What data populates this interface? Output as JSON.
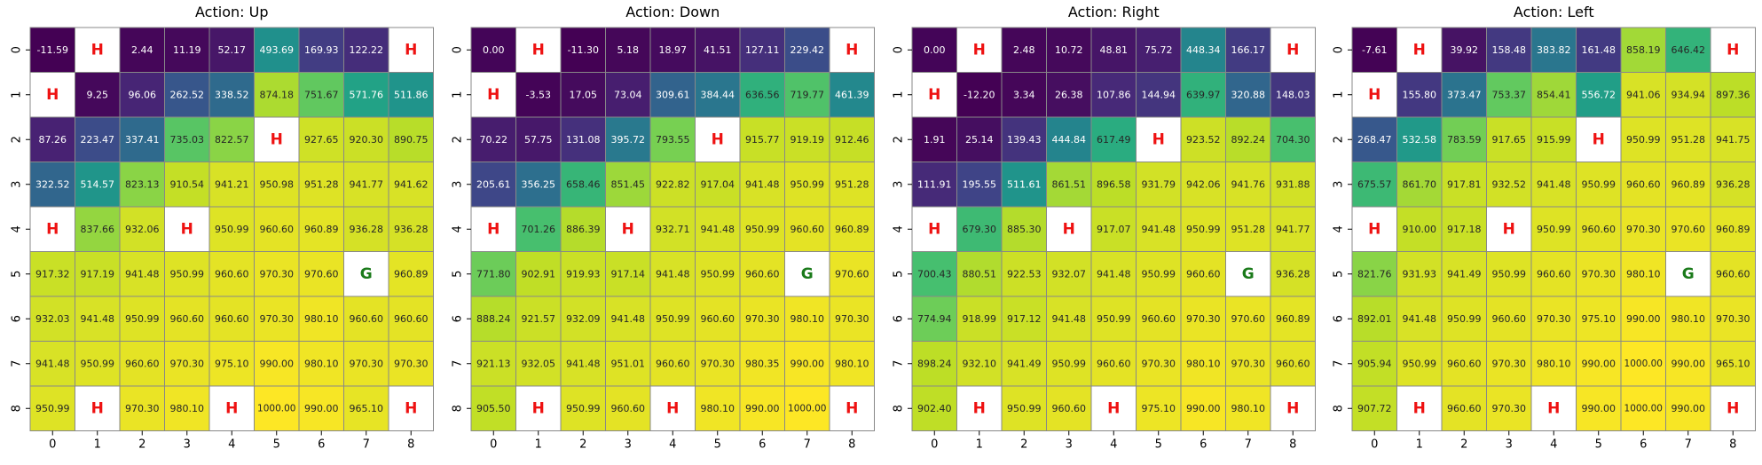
{
  "chart_data": [
    {
      "type": "heatmap",
      "title": "Action: Up",
      "x_ticks": [
        "0",
        "1",
        "2",
        "3",
        "4",
        "5",
        "6",
        "7",
        "8"
      ],
      "y_ticks": [
        "0",
        "1",
        "2",
        "3",
        "4",
        "5",
        "6",
        "7",
        "8"
      ],
      "colormap": "viridis",
      "vmin": -12.2,
      "vmax": 1000.0,
      "hole_label": "H",
      "goal_label": "G",
      "hole_color": "#ee1111",
      "goal_color": "#1a7a1a",
      "cells": [
        [
          "-11.59",
          "H",
          "2.44",
          "11.19",
          "52.17",
          "493.69",
          "169.93",
          "122.22",
          "H"
        ],
        [
          "H",
          "9.25",
          "96.06",
          "262.52",
          "338.52",
          "874.18",
          "751.67",
          "571.76",
          "511.86"
        ],
        [
          "87.26",
          "223.47",
          "337.41",
          "735.03",
          "822.57",
          "H",
          "927.65",
          "920.30",
          "890.75"
        ],
        [
          "322.52",
          "514.57",
          "823.13",
          "910.54",
          "941.21",
          "950.98",
          "951.28",
          "941.77",
          "941.62"
        ],
        [
          "H",
          "837.66",
          "932.06",
          "H",
          "950.99",
          "960.60",
          "960.89",
          "936.28",
          "936.28"
        ],
        [
          "917.32",
          "917.19",
          "941.48",
          "950.99",
          "960.60",
          "970.30",
          "970.60",
          "G",
          "960.89"
        ],
        [
          "932.03",
          "941.48",
          "950.99",
          "960.60",
          "960.60",
          "970.30",
          "980.10",
          "960.60",
          "960.60"
        ],
        [
          "941.48",
          "950.99",
          "960.60",
          "970.30",
          "975.10",
          "990.00",
          "980.10",
          "970.30",
          "970.30"
        ],
        [
          "950.99",
          "H",
          "970.30",
          "980.10",
          "H",
          "1000.00",
          "990.00",
          "965.10",
          "H"
        ]
      ]
    },
    {
      "type": "heatmap",
      "title": "Action: Down",
      "x_ticks": [
        "0",
        "1",
        "2",
        "3",
        "4",
        "5",
        "6",
        "7",
        "8"
      ],
      "y_ticks": [
        "0",
        "1",
        "2",
        "3",
        "4",
        "5",
        "6",
        "7",
        "8"
      ],
      "colormap": "viridis",
      "vmin": -12.2,
      "vmax": 1000.0,
      "hole_label": "H",
      "goal_label": "G",
      "hole_color": "#ee1111",
      "goal_color": "#1a7a1a",
      "cells": [
        [
          "0.00",
          "H",
          "-11.30",
          "5.18",
          "18.97",
          "41.51",
          "127.11",
          "229.42",
          "H"
        ],
        [
          "H",
          "-3.53",
          "17.05",
          "73.04",
          "309.61",
          "384.44",
          "636.56",
          "719.77",
          "461.39"
        ],
        [
          "70.22",
          "57.75",
          "131.08",
          "395.72",
          "793.55",
          "H",
          "915.77",
          "919.19",
          "912.46"
        ],
        [
          "205.61",
          "356.25",
          "658.46",
          "851.45",
          "922.82",
          "917.04",
          "941.48",
          "950.99",
          "951.28"
        ],
        [
          "H",
          "701.26",
          "886.39",
          "H",
          "932.71",
          "941.48",
          "950.99",
          "960.60",
          "960.89"
        ],
        [
          "771.80",
          "902.91",
          "919.93",
          "917.14",
          "941.48",
          "950.99",
          "960.60",
          "G",
          "970.60"
        ],
        [
          "888.24",
          "921.57",
          "932.09",
          "941.48",
          "950.99",
          "960.60",
          "970.30",
          "980.10",
          "970.30"
        ],
        [
          "921.13",
          "932.05",
          "941.48",
          "951.01",
          "960.60",
          "970.30",
          "980.35",
          "990.00",
          "980.10"
        ],
        [
          "905.50",
          "H",
          "950.99",
          "960.60",
          "H",
          "980.10",
          "990.00",
          "1000.00",
          "H"
        ]
      ]
    },
    {
      "type": "heatmap",
      "title": "Action: Right",
      "x_ticks": [
        "0",
        "1",
        "2",
        "3",
        "4",
        "5",
        "6",
        "7",
        "8"
      ],
      "y_ticks": [
        "0",
        "1",
        "2",
        "3",
        "4",
        "5",
        "6",
        "7",
        "8"
      ],
      "colormap": "viridis",
      "vmin": -12.2,
      "vmax": 1000.0,
      "hole_label": "H",
      "goal_label": "G",
      "hole_color": "#ee1111",
      "goal_color": "#1a7a1a",
      "cells": [
        [
          "0.00",
          "H",
          "2.48",
          "10.72",
          "48.81",
          "75.72",
          "448.34",
          "166.17",
          "H"
        ],
        [
          "H",
          "-12.20",
          "3.34",
          "26.38",
          "107.86",
          "144.94",
          "639.97",
          "320.88",
          "148.03"
        ],
        [
          "1.91",
          "25.14",
          "139.43",
          "444.84",
          "617.49",
          "H",
          "923.52",
          "892.24",
          "704.30"
        ],
        [
          "111.91",
          "195.55",
          "511.61",
          "861.51",
          "896.58",
          "931.79",
          "942.06",
          "941.76",
          "931.88"
        ],
        [
          "H",
          "679.30",
          "885.30",
          "H",
          "917.07",
          "941.48",
          "950.99",
          "951.28",
          "941.77"
        ],
        [
          "700.43",
          "880.51",
          "922.53",
          "932.07",
          "941.48",
          "950.99",
          "960.60",
          "G",
          "936.28"
        ],
        [
          "774.94",
          "918.99",
          "917.12",
          "941.48",
          "950.99",
          "960.60",
          "970.30",
          "970.60",
          "960.89"
        ],
        [
          "898.24",
          "932.10",
          "941.49",
          "950.99",
          "960.60",
          "970.30",
          "980.10",
          "970.30",
          "960.60"
        ],
        [
          "902.40",
          "H",
          "950.99",
          "960.60",
          "H",
          "975.10",
          "990.00",
          "980.10",
          "H"
        ]
      ]
    },
    {
      "type": "heatmap",
      "title": "Action: Left",
      "x_ticks": [
        "0",
        "1",
        "2",
        "3",
        "4",
        "5",
        "6",
        "7",
        "8"
      ],
      "y_ticks": [
        "0",
        "1",
        "2",
        "3",
        "4",
        "5",
        "6",
        "7",
        "8"
      ],
      "colormap": "viridis",
      "vmin": -12.2,
      "vmax": 1000.0,
      "hole_label": "H",
      "goal_label": "G",
      "hole_color": "#ee1111",
      "goal_color": "#1a7a1a",
      "cells": [
        [
          "-7.61",
          "H",
          "39.92",
          "158.48",
          "383.82",
          "161.48",
          "858.19",
          "646.42",
          "H"
        ],
        [
          "H",
          "155.80",
          "373.47",
          "753.37",
          "854.41",
          "556.72",
          "941.06",
          "934.94",
          "897.36"
        ],
        [
          "268.47",
          "532.58",
          "783.59",
          "917.65",
          "915.99",
          "H",
          "950.99",
          "951.28",
          "941.75"
        ],
        [
          "675.57",
          "861.70",
          "917.81",
          "932.52",
          "941.48",
          "950.99",
          "960.60",
          "960.89",
          "936.28"
        ],
        [
          "H",
          "910.00",
          "917.18",
          "H",
          "950.99",
          "960.60",
          "970.30",
          "970.60",
          "960.89"
        ],
        [
          "821.76",
          "931.93",
          "941.49",
          "950.99",
          "960.60",
          "970.30",
          "980.10",
          "G",
          "960.60"
        ],
        [
          "892.01",
          "941.48",
          "950.99",
          "960.60",
          "970.30",
          "975.10",
          "990.00",
          "980.10",
          "970.30"
        ],
        [
          "905.94",
          "950.99",
          "960.60",
          "970.30",
          "980.10",
          "990.00",
          "1000.00",
          "990.00",
          "965.10"
        ],
        [
          "907.72",
          "H",
          "960.60",
          "970.30",
          "H",
          "990.00",
          "1000.00",
          "990.00",
          "H"
        ]
      ]
    }
  ]
}
